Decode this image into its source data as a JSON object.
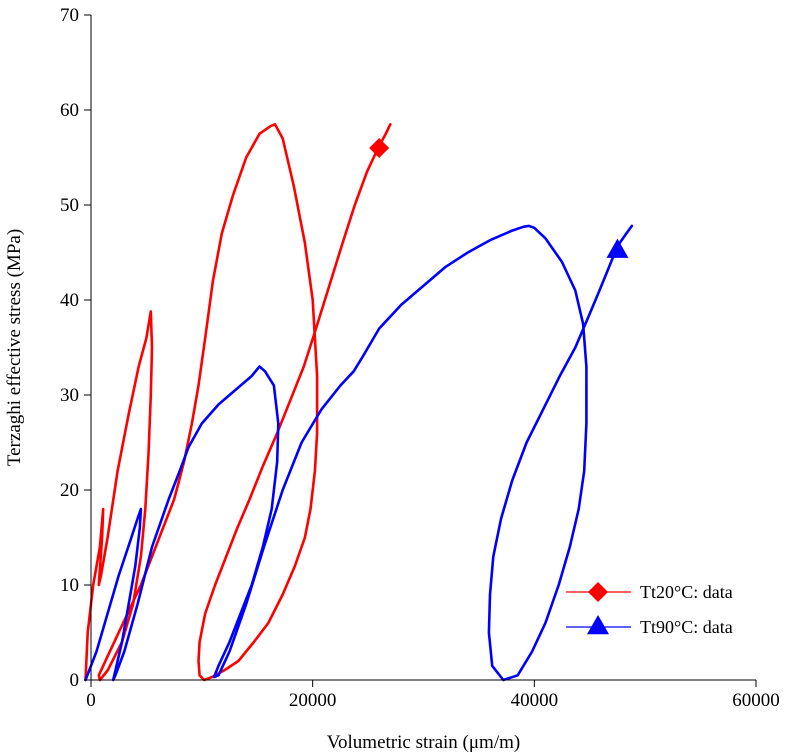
{
  "chart_data": {
    "type": "line",
    "title": "",
    "xlabel": "Volumetric strain (μm/m)",
    "ylabel": "Terzaghi effective stress (MPa)",
    "xlim": [
      0,
      60000
    ],
    "ylim": [
      0,
      70
    ],
    "xticks": [
      0,
      20000,
      40000,
      60000
    ],
    "yticks": [
      0,
      10,
      20,
      30,
      40,
      50,
      60,
      70
    ],
    "x_tick_labels": [
      "0",
      "20000",
      "40000",
      "60000"
    ],
    "y_tick_labels": [
      "0",
      "10",
      "20",
      "30",
      "40",
      "50",
      "60",
      "70"
    ],
    "grid": false,
    "legend_position": "bottom-right",
    "series": [
      {
        "name": "Tt20°C: data",
        "color": "#ff0000",
        "marker": "diamond",
        "marker_point": [
          26000,
          56
        ],
        "x": [
          -500,
          -300,
          200,
          800,
          1100,
          1000,
          700,
          900,
          1500,
          2400,
          3400,
          4300,
          5000,
          5400,
          5500,
          5400,
          5200,
          4900,
          4500,
          3800,
          2800,
          1500,
          800,
          700,
          1500,
          2500,
          3500,
          4500,
          5500,
          6500,
          7500,
          8400,
          9100,
          9700,
          10300,
          11000,
          11800,
          12800,
          14000,
          15200,
          16200,
          16600,
          17300,
          18300,
          19300,
          20000,
          20400,
          20400,
          20200,
          19800,
          19300,
          18400,
          17300,
          16000,
          14700,
          13300,
          12000,
          10900,
          10200,
          9800,
          9700,
          9800,
          10300,
          11200,
          12200,
          13200,
          14300,
          15500,
          16800,
          18000,
          19200,
          20300,
          21500,
          22700,
          23800,
          24900,
          25900,
          26600,
          27000
        ],
        "y": [
          0,
          5,
          10,
          14,
          18,
          15,
          10,
          11,
          15,
          22,
          28,
          33,
          36,
          38.8,
          35,
          30,
          24,
          18,
          13,
          8,
          4,
          1,
          0,
          0.5,
          2.5,
          5,
          7.5,
          10,
          13,
          16,
          19,
          23,
          27,
          31,
          36,
          42,
          47,
          51,
          55,
          57.5,
          58.3,
          58.5,
          57,
          52,
          46,
          40,
          32,
          26,
          22,
          18,
          15,
          12,
          9,
          6,
          4,
          2,
          1,
          0.3,
          0,
          0.5,
          2,
          4,
          7,
          10,
          13,
          16,
          19,
          22.5,
          26,
          29.5,
          33,
          37,
          41.5,
          46,
          50,
          53.5,
          56,
          57.5,
          58.5
        ]
      },
      {
        "name": "Tt90°C: data",
        "color": "#0000ff",
        "marker": "triangle",
        "marker_point": [
          47500,
          45.3
        ],
        "x": [
          -500,
          500,
          1500,
          2500,
          3500,
          4200,
          4500,
          4400,
          4000,
          3400,
          2800,
          2200,
          2000,
          2200,
          3000,
          4200,
          5500,
          7000,
          8000,
          8800,
          10000,
          11500,
          13000,
          14500,
          15200,
          15700,
          16500,
          16900,
          16800,
          16300,
          15500,
          14500,
          13500,
          12500,
          11500,
          11100,
          11500,
          12500,
          14000,
          15600,
          17300,
          19000,
          20800,
          22500,
          23700,
          24500,
          26000,
          28000,
          30000,
          32000,
          34000,
          36000,
          38000,
          39000,
          39500,
          40000,
          41000,
          42500,
          43700,
          44400,
          44700,
          44700,
          44500,
          44000,
          43200,
          42200,
          41000,
          39800,
          38500,
          37200,
          36200,
          35900,
          36000,
          36300,
          37000,
          38000,
          39300,
          40800,
          42300,
          43700,
          44800,
          45700,
          46400,
          47100,
          47700,
          48300,
          48800
        ],
        "y": [
          0,
          3,
          7,
          11,
          14.5,
          17,
          18,
          16,
          12,
          8,
          4,
          1,
          0,
          0.5,
          3,
          8,
          14,
          19,
          22,
          24.5,
          27,
          29,
          30.5,
          32,
          33,
          32.5,
          31,
          27,
          23,
          18,
          14,
          10,
          7,
          4,
          1.5,
          0.3,
          0.5,
          3,
          8,
          14,
          20,
          25,
          28.5,
          31,
          32.5,
          34,
          37,
          39.5,
          41.5,
          43.5,
          45,
          46.3,
          47.3,
          47.7,
          47.8,
          47.6,
          46.5,
          44,
          41,
          37.5,
          33,
          27,
          22,
          18,
          14,
          10,
          6,
          3,
          0.5,
          0,
          1.5,
          5,
          9,
          13,
          17,
          21,
          25,
          28.5,
          32,
          35,
          38,
          40.5,
          42.5,
          44.5,
          46,
          47,
          47.8
        ]
      }
    ]
  }
}
